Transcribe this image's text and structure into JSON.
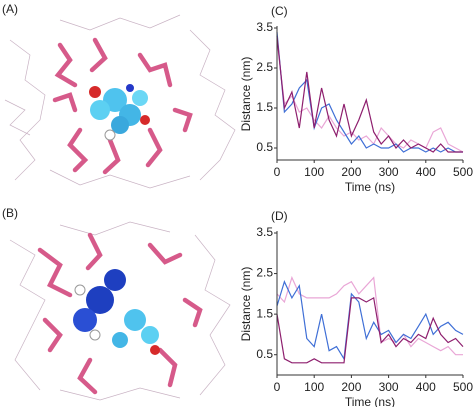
{
  "panel_labels": [
    "(A)",
    "(B)"
  ],
  "chart_data": [
    {
      "type": "line",
      "panel_label": "(C)",
      "xlabel": "Time (ns)",
      "ylabel": "Distance (nm)",
      "x": [
        0,
        20,
        40,
        60,
        80,
        100,
        120,
        140,
        160,
        180,
        200,
        220,
        240,
        260,
        280,
        300,
        320,
        340,
        360,
        380,
        400,
        420,
        440,
        460,
        480,
        500
      ],
      "xlim": [
        0,
        500
      ],
      "xticks": [
        0,
        100,
        200,
        300,
        400,
        500
      ],
      "ylim": [
        0.2,
        3.5
      ],
      "yticks": [
        0.5,
        1.5,
        2.5,
        3.5
      ],
      "series": [
        {
          "color": "#e9a6d6",
          "values": [
            3.2,
            1.6,
            1.8,
            1.4,
            1.5,
            1.2,
            1.0,
            1.3,
            1.0,
            0.8,
            0.9,
            0.7,
            0.8,
            0.6,
            1.0,
            0.8,
            0.6,
            0.5,
            0.7,
            0.6,
            0.5,
            0.9,
            1.0,
            0.6,
            0.5,
            0.4
          ]
        },
        {
          "color": "#3f6fd6",
          "values": [
            3.4,
            1.4,
            1.6,
            2.0,
            2.2,
            1.0,
            1.5,
            1.6,
            1.2,
            0.9,
            0.6,
            0.8,
            0.5,
            0.6,
            0.5,
            0.5,
            0.6,
            0.4,
            0.5,
            0.5,
            0.4,
            0.5,
            0.4,
            0.5,
            0.4,
            0.4
          ]
        },
        {
          "color": "#8e1f6e",
          "values": [
            3.3,
            1.5,
            1.9,
            1.0,
            2.4,
            1.0,
            2.0,
            1.2,
            0.8,
            1.6,
            0.8,
            1.2,
            1.7,
            0.9,
            0.6,
            0.8,
            0.5,
            0.7,
            0.5,
            0.6,
            0.5,
            0.4,
            0.6,
            0.4,
            0.4,
            0.4
          ]
        }
      ]
    },
    {
      "type": "line",
      "panel_label": "(D)",
      "xlabel": "Time (ns)",
      "ylabel": "Distance (nm)",
      "x": [
        0,
        20,
        40,
        60,
        80,
        100,
        120,
        140,
        160,
        180,
        200,
        220,
        240,
        260,
        280,
        300,
        320,
        340,
        360,
        380,
        400,
        420,
        440,
        460,
        480,
        500
      ],
      "xlim": [
        0,
        500
      ],
      "xticks": [
        0,
        100,
        200,
        300,
        400,
        500
      ],
      "ylim": [
        0,
        3.5
      ],
      "yticks": [
        0.5,
        1.5,
        2.5,
        3.5
      ],
      "series": [
        {
          "color": "#e9a6d6",
          "values": [
            2.0,
            1.8,
            2.4,
            2.0,
            1.9,
            1.9,
            1.9,
            1.9,
            2.0,
            2.2,
            2.3,
            2.0,
            2.2,
            2.4,
            0.8,
            0.9,
            0.8,
            1.0,
            0.7,
            0.9,
            0.8,
            0.7,
            0.6,
            0.7,
            0.5,
            0.5
          ]
        },
        {
          "color": "#3f6fd6",
          "values": [
            1.7,
            2.3,
            1.9,
            2.2,
            0.9,
            0.7,
            1.5,
            0.6,
            0.7,
            0.4,
            2.0,
            1.8,
            0.9,
            1.3,
            1.0,
            1.1,
            0.8,
            1.0,
            0.9,
            1.2,
            1.5,
            1.0,
            1.2,
            1.3,
            1.1,
            1.0
          ]
        },
        {
          "color": "#8e1f6e",
          "values": [
            1.5,
            0.4,
            0.3,
            0.3,
            0.3,
            0.4,
            0.3,
            0.3,
            0.3,
            0.3,
            1.9,
            1.9,
            1.8,
            1.9,
            0.8,
            1.0,
            0.7,
            0.9,
            0.8,
            1.0,
            0.9,
            1.4,
            1.0,
            0.8,
            0.9,
            0.7
          ]
        }
      ]
    }
  ]
}
